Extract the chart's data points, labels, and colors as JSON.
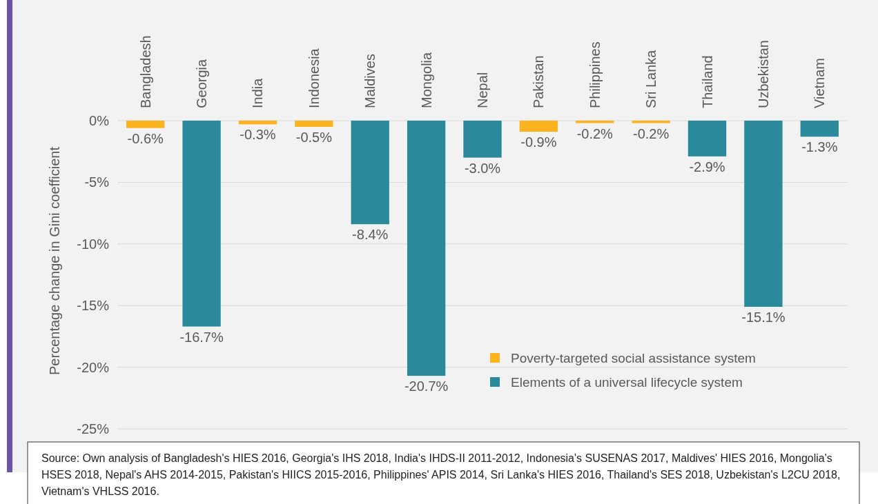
{
  "chart_data": {
    "type": "bar",
    "stacked": true,
    "ylabel": "Percentage change in Gini coefficient",
    "categories": [
      "Bangladesh",
      "Georgia",
      "India",
      "Indonesia",
      "Maldives",
      "Mongolia",
      "Nepal",
      "Pakistan",
      "Philippines",
      "Sri Lanka",
      "Thailand",
      "Uzbekistan",
      "Vietnam"
    ],
    "series": [
      {
        "name": "Poverty-targeted social assistance system",
        "color": "#fbb41f",
        "values": [
          -0.6,
          null,
          -0.3,
          -0.5,
          null,
          null,
          null,
          -0.9,
          -0.2,
          -0.2,
          null,
          null,
          null
        ],
        "value_labels": [
          "-0.6%",
          null,
          "-0.3%",
          "-0.5%",
          null,
          null,
          null,
          "-0.9%",
          "-0.2%",
          "-0.2%",
          null,
          null,
          null
        ]
      },
      {
        "name": "Elements of a universal lifecycle system",
        "color": "#2a8a9b",
        "values": [
          null,
          -16.7,
          null,
          null,
          -8.4,
          -20.7,
          -3.0,
          null,
          null,
          null,
          -2.9,
          -15.1,
          -1.3
        ],
        "value_labels": [
          null,
          "-16.7%",
          null,
          null,
          "-8.4%",
          "-20.7%",
          "-3.0%",
          null,
          null,
          null,
          "-2.9%",
          "-15.1%",
          "-1.3%"
        ]
      }
    ],
    "ylim": [
      -25,
      0
    ],
    "yticks": [
      {
        "value": 0,
        "label": "0%"
      },
      {
        "value": -5,
        "label": "-5%"
      },
      {
        "value": -10,
        "label": "-10%"
      },
      {
        "value": -15,
        "label": "-15%"
      },
      {
        "value": -20,
        "label": "-20%"
      },
      {
        "value": -25,
        "label": "-25%"
      }
    ],
    "grid": "y",
    "legend": "bottom right",
    "annotations": [
      "Source: Own analysis of Bangladesh's HIES 2016, Georgia's IHS 2018, India's IHDS-II 2011-2012, Indonesia's SUSENAS 2017, Maldives' HIES 2016, Mongolia's HSES 2018, Nepal's AHS 2014-2015, Pakistan's HIICS 2015-2016, Philippines' APIS 2014, Sri Lanka's HIES 2016, Thailand's SES 2018, Uzbekistan's L2CU 2018, Vietnam's VHLSS 2016."
    ]
  }
}
